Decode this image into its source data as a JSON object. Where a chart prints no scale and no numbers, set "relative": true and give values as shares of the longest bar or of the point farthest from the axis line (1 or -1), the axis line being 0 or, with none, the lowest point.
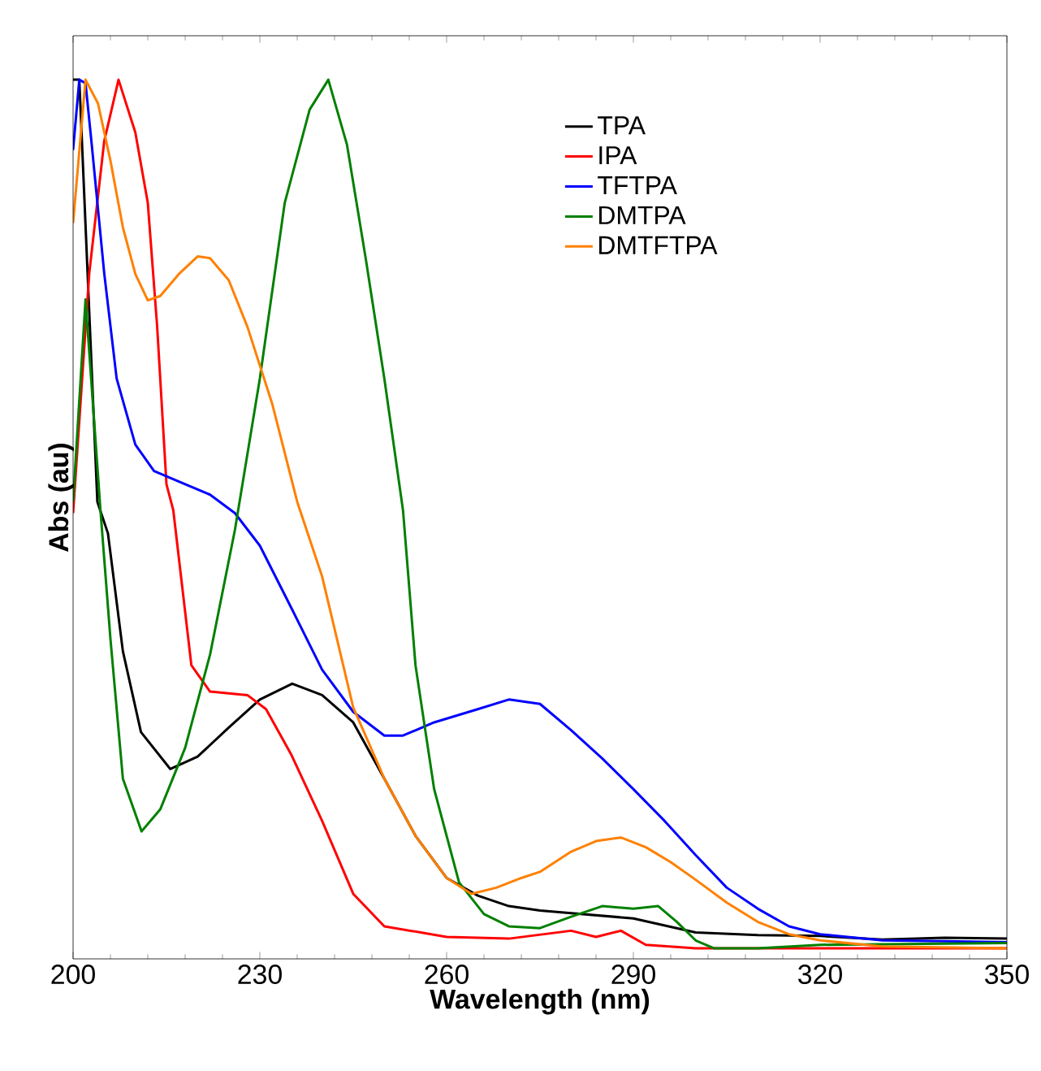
{
  "chart_data": {
    "type": "line",
    "xlabel": "Wavelength (nm)",
    "ylabel": "Abs (au)",
    "relative": true,
    "xlim": [
      200,
      350
    ],
    "xticks": [
      200,
      230,
      260,
      290,
      320,
      350
    ],
    "legend": "top right",
    "grid": false,
    "marker": "none",
    "line_style": "solid",
    "series": [
      {
        "name": "TPA",
        "color": "#000000",
        "x": [
          200,
          201,
          203.9,
          205.6,
          208,
          210.9,
          215.6,
          220,
          225,
          230,
          235.2,
          240,
          245,
          250,
          255,
          260,
          265,
          270,
          275,
          280,
          290,
          300,
          310,
          320,
          330,
          340,
          350
        ],
        "values": [
          1.0,
          1.0,
          0.52,
          0.484,
          0.35,
          0.258,
          0.216,
          0.23,
          0.263,
          0.295,
          0.313,
          0.3,
          0.269,
          0.205,
          0.14,
          0.092,
          0.072,
          0.06,
          0.055,
          0.052,
          0.046,
          0.03,
          0.027,
          0.026,
          0.022,
          0.024,
          0.023
        ]
      },
      {
        "name": "IPA",
        "color": "#ff0000",
        "x": [
          200,
          202.6,
          205,
          207.3,
          210,
          212,
          213.5,
          215,
          216.1,
          219,
          222,
          228,
          231,
          235,
          240,
          245,
          250,
          260,
          270,
          280,
          284,
          288,
          292,
          300,
          320,
          350
        ],
        "values": [
          0.507,
          0.78,
          0.93,
          1.0,
          0.94,
          0.86,
          0.72,
          0.54,
          0.51,
          0.334,
          0.304,
          0.3,
          0.284,
          0.233,
          0.157,
          0.074,
          0.037,
          0.025,
          0.023,
          0.032,
          0.025,
          0.032,
          0.016,
          0.012,
          0.012,
          0.012
        ]
      },
      {
        "name": "TFTPA",
        "color": "#0000ff",
        "x": [
          200,
          201,
          202,
          203,
          205,
          207,
          210,
          213,
          218,
          222,
          226,
          230,
          235,
          240,
          245,
          250,
          253,
          258,
          265,
          270,
          275,
          280,
          285,
          290,
          295,
          300,
          305,
          310,
          315,
          320,
          330,
          340,
          350
        ],
        "values": [
          0.92,
          1.0,
          0.996,
          0.926,
          0.78,
          0.66,
          0.585,
          0.555,
          0.54,
          0.528,
          0.507,
          0.47,
          0.4,
          0.329,
          0.281,
          0.254,
          0.254,
          0.269,
          0.284,
          0.295,
          0.29,
          0.26,
          0.228,
          0.193,
          0.157,
          0.118,
          0.081,
          0.057,
          0.037,
          0.028,
          0.021,
          0.02,
          0.019
        ]
      },
      {
        "name": "DMTPA",
        "color": "#008000",
        "x": [
          200,
          202,
          203.5,
          204.4,
          206,
          208,
          211,
          214,
          218,
          222,
          226,
          230,
          234,
          238,
          241,
          244,
          247,
          250,
          253,
          255,
          258,
          262,
          266,
          270,
          275,
          280,
          285,
          290,
          294,
          297,
          300,
          303,
          310,
          320,
          350
        ],
        "values": [
          0.52,
          0.75,
          0.6,
          0.51,
          0.364,
          0.205,
          0.145,
          0.17,
          0.24,
          0.346,
          0.488,
          0.66,
          0.86,
          0.966,
          1.0,
          0.926,
          0.797,
          0.66,
          0.51,
          0.334,
          0.193,
          0.087,
          0.051,
          0.037,
          0.035,
          0.048,
          0.06,
          0.057,
          0.06,
          0.042,
          0.021,
          0.012,
          0.012,
          0.016,
          0.018
        ]
      },
      {
        "name": "DMTFTPA",
        "color": "#ff8000",
        "x": [
          200,
          202,
          204,
          206,
          208,
          210,
          212,
          214,
          217,
          220,
          222,
          225,
          228,
          232,
          236,
          240,
          245,
          250,
          255,
          260,
          264,
          268,
          272,
          275,
          280,
          284,
          288,
          292,
          296,
          300,
          305,
          310,
          315,
          320,
          330,
          350
        ],
        "values": [
          0.837,
          1.0,
          0.973,
          0.908,
          0.832,
          0.779,
          0.749,
          0.754,
          0.779,
          0.799,
          0.797,
          0.772,
          0.719,
          0.631,
          0.52,
          0.435,
          0.286,
          0.205,
          0.14,
          0.092,
          0.074,
          0.081,
          0.092,
          0.099,
          0.122,
          0.134,
          0.138,
          0.127,
          0.11,
          0.09,
          0.064,
          0.042,
          0.028,
          0.021,
          0.014,
          0.012
        ]
      }
    ]
  }
}
